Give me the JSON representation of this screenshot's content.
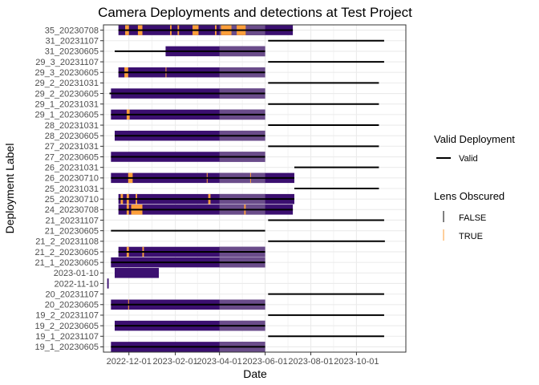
{
  "chart_data": {
    "type": "timeline",
    "title": "Camera Deployments and detections at Test Project",
    "xlabel": "Date",
    "ylabel": "Deployment Label",
    "x_ticks": [
      "2022-12-01",
      "2023-02-01",
      "2023-04-01",
      "2023-06-01",
      "2023-08-01",
      "2023-10-01"
    ],
    "xlim": [
      "2022-10-28",
      "2023-12-06"
    ],
    "grid": true,
    "colors": {
      "valid_line": "#000000",
      "bar_false": "#3b0f70",
      "bar_false_light": "#6a4c8a",
      "bar_true": "#fd9f3a",
      "grid": "#ebebeb",
      "panel_border": "#333333"
    },
    "legend": {
      "placement": "right",
      "valid": {
        "title": "Valid Deployment",
        "entries": [
          "Valid"
        ]
      },
      "lens": {
        "title": "Lens Obscured",
        "entries": [
          "FALSE",
          "TRUE"
        ]
      }
    },
    "deployments": [
      {
        "label": "19_1_20230605",
        "line": [
          "2022-11-07",
          "2023-06-01"
        ],
        "bar": [
          "2022-11-07",
          "2023-06-01"
        ],
        "obscured": []
      },
      {
        "label": "19_1_20231107",
        "line": [
          "2023-06-05",
          "2023-11-07"
        ],
        "bar": null,
        "obscured": []
      },
      {
        "label": "19_2_20230605",
        "line": [
          "2022-11-12",
          "2023-06-01"
        ],
        "bar": [
          "2022-11-12",
          "2023-06-01"
        ],
        "obscured": []
      },
      {
        "label": "19_2_20231107",
        "line": [
          "2023-06-05",
          "2023-11-07"
        ],
        "bar": null,
        "obscured": []
      },
      {
        "label": "20_20230605",
        "line": [
          "2022-11-07",
          "2023-06-01"
        ],
        "bar": [
          "2022-11-07",
          "2023-06-01"
        ],
        "obscured": [
          [
            "2022-11-30",
            "2022-12-01"
          ]
        ]
      },
      {
        "label": "20_20231107",
        "line": [
          "2023-06-05",
          "2023-11-07"
        ],
        "bar": null,
        "obscured": []
      },
      {
        "label": "2022-11-10",
        "line": null,
        "bar": [
          "2022-11-02",
          "2022-11-04"
        ],
        "obscured": []
      },
      {
        "label": "2023-01-10",
        "line": null,
        "bar": [
          "2022-11-12",
          "2023-01-10"
        ],
        "obscured": []
      },
      {
        "label": "21_1_20230605",
        "line": [
          "2022-11-07",
          "2023-06-01"
        ],
        "bar": [
          "2022-11-07",
          "2023-06-01"
        ],
        "obscured": []
      },
      {
        "label": "21_2_20230605",
        "line": [
          "2022-11-17",
          "2023-06-01"
        ],
        "bar": [
          "2022-11-17",
          "2023-06-01"
        ],
        "obscured": [
          [
            "2022-11-28",
            "2022-12-01"
          ],
          [
            "2022-12-19",
            "2022-12-21"
          ]
        ]
      },
      {
        "label": "21_2_20231108",
        "line": [
          "2023-06-05",
          "2023-11-08"
        ],
        "bar": null,
        "obscured": []
      },
      {
        "label": "21_20230605",
        "line": [
          "2022-11-07",
          "2023-06-01"
        ],
        "bar": null,
        "obscured": []
      },
      {
        "label": "21_20231107",
        "line": [
          "2023-06-05",
          "2023-11-07"
        ],
        "bar": null,
        "obscured": []
      },
      {
        "label": "24_20230708",
        "line": [
          "2022-11-17",
          "2023-07-08"
        ],
        "bar": [
          "2022-11-17",
          "2023-07-08"
        ],
        "obscured": [
          [
            "2022-11-28",
            "2022-12-01"
          ],
          [
            "2022-12-04",
            "2022-12-19"
          ],
          [
            "2023-05-04",
            "2023-05-06"
          ]
        ]
      },
      {
        "label": "25_20230710",
        "line": [
          "2022-11-17",
          "2023-07-10"
        ],
        "bar": [
          "2022-11-17",
          "2023-07-10"
        ],
        "obscured": [
          [
            "2022-11-20",
            "2022-11-23"
          ],
          [
            "2022-11-28",
            "2022-12-01"
          ],
          [
            "2022-12-10",
            "2022-12-12"
          ],
          [
            "2023-03-17",
            "2023-03-20"
          ]
        ]
      },
      {
        "label": "25_20231031",
        "line": [
          "2023-07-10",
          "2023-10-31"
        ],
        "bar": null,
        "obscured": []
      },
      {
        "label": "26_20230710",
        "line": [
          "2022-11-07",
          "2023-07-10"
        ],
        "bar": [
          "2022-11-07",
          "2023-07-10"
        ],
        "obscured": [
          [
            "2022-11-30",
            "2022-12-06"
          ],
          [
            "2023-03-15",
            "2023-03-16"
          ],
          [
            "2023-05-12",
            "2023-05-13"
          ]
        ]
      },
      {
        "label": "26_20231031",
        "line": [
          "2023-07-10",
          "2023-10-31"
        ],
        "bar": null,
        "obscured": []
      },
      {
        "label": "27_20230605",
        "line": [
          "2022-11-07",
          "2023-06-01"
        ],
        "bar": [
          "2022-11-07",
          "2023-06-01"
        ],
        "obscured": []
      },
      {
        "label": "27_20231031",
        "line": [
          "2023-06-05",
          "2023-10-31"
        ],
        "bar": null,
        "obscured": []
      },
      {
        "label": "28_20230605",
        "line": [
          "2022-11-12",
          "2023-06-01"
        ],
        "bar": [
          "2022-11-12",
          "2023-06-01"
        ],
        "obscured": []
      },
      {
        "label": "28_20231031",
        "line": [
          "2023-06-05",
          "2023-10-31"
        ],
        "bar": null,
        "obscured": []
      },
      {
        "label": "29_1_20230605",
        "line": [
          "2022-11-07",
          "2023-06-01"
        ],
        "bar": [
          "2022-11-07",
          "2023-06-01"
        ],
        "obscured": [
          [
            "2022-11-28",
            "2022-12-02"
          ]
        ]
      },
      {
        "label": "29_1_20231031",
        "line": [
          "2023-06-05",
          "2023-10-31"
        ],
        "bar": null,
        "obscured": []
      },
      {
        "label": "29_2_20230605",
        "line": [
          "2022-11-05",
          "2023-06-01"
        ],
        "bar": [
          "2022-11-07",
          "2023-06-01"
        ],
        "obscured": []
      },
      {
        "label": "29_2_20231031",
        "line": [
          "2023-06-05",
          "2023-10-31"
        ],
        "bar": null,
        "obscured": []
      },
      {
        "label": "29_3_20230605",
        "line": [
          "2022-11-17",
          "2023-06-01"
        ],
        "bar": [
          "2022-11-17",
          "2023-06-01"
        ],
        "obscured": [
          [
            "2022-11-25",
            "2022-11-30"
          ],
          [
            "2023-01-19",
            "2023-01-20"
          ]
        ]
      },
      {
        "label": "29_3_20231107",
        "line": [
          "2023-06-05",
          "2023-11-07"
        ],
        "bar": null,
        "obscured": []
      },
      {
        "label": "31_20230605",
        "line": [
          "2022-11-12",
          "2023-06-01"
        ],
        "bar": [
          "2023-01-19",
          "2023-06-01"
        ],
        "obscured": []
      },
      {
        "label": "31_20231107",
        "line": [
          "2023-06-05",
          "2023-11-07"
        ],
        "bar": null,
        "obscured": []
      },
      {
        "label": "35_20230708",
        "line": [
          "2022-11-17",
          "2023-07-08"
        ],
        "bar": [
          "2022-11-17",
          "2023-07-08"
        ],
        "obscured": [
          [
            "2022-11-26",
            "2022-12-01"
          ],
          [
            "2022-12-13",
            "2022-12-19"
          ],
          [
            "2023-01-25",
            "2023-01-27"
          ],
          [
            "2023-02-04",
            "2023-02-06"
          ],
          [
            "2023-02-24",
            "2023-03-04"
          ],
          [
            "2023-03-26",
            "2023-03-28"
          ],
          [
            "2023-04-03",
            "2023-04-17"
          ],
          [
            "2023-04-24",
            "2023-05-06"
          ]
        ]
      }
    ]
  }
}
